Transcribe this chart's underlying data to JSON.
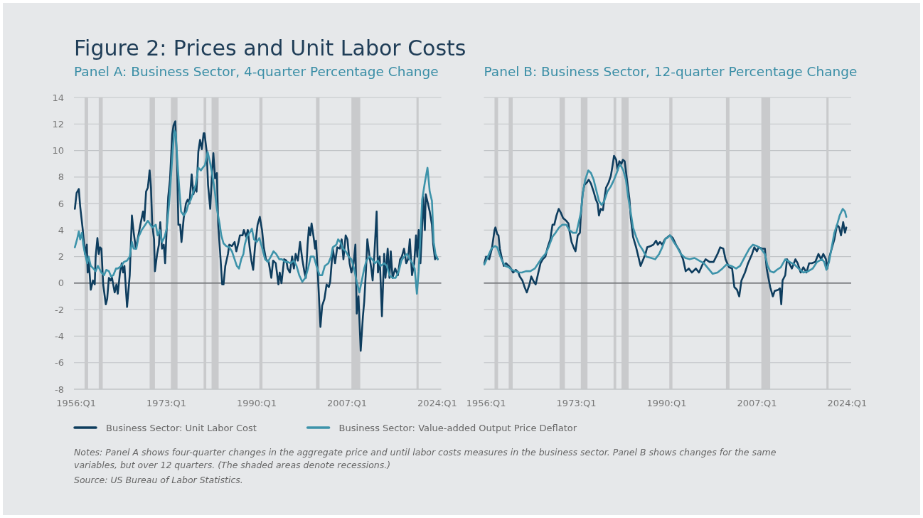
{
  "chart_data": [
    {
      "type": "line",
      "title": "Figure 2: Prices and Unit Labor Costs",
      "subtitle": "Panel A: Business Sector, 4-quarter Percentage Change",
      "xlim": [
        "1955-08",
        "2024-10"
      ],
      "xticks": [
        {
          "value": "1956-01",
          "label": "1956:Q1"
        },
        {
          "value": "1973-01",
          "label": "1973:Q1"
        },
        {
          "value": "1990-01",
          "label": "1990:Q1"
        },
        {
          "value": "2007-01",
          "label": "2007:Q1"
        },
        {
          "value": "2024-01",
          "label": "2024:Q1"
        }
      ],
      "ylim": [
        -8,
        14
      ],
      "yticks": [
        -8,
        -6,
        -4,
        -2,
        0,
        2,
        4,
        6,
        8,
        10,
        12,
        14
      ],
      "grid": "y",
      "legend": "bottom",
      "line_style": "solid",
      "bands": [
        {
          "axis": "x",
          "from": "1957-08",
          "to": "1958-04",
          "color": "#c9cacc"
        },
        {
          "axis": "x",
          "from": "1960-04",
          "to": "1961-01",
          "color": "#c9cacc"
        },
        {
          "axis": "x",
          "from": "1969-11",
          "to": "1970-11",
          "color": "#c9cacc"
        },
        {
          "axis": "x",
          "from": "1973-11",
          "to": "1975-02",
          "color": "#c9cacc"
        },
        {
          "axis": "x",
          "from": "1980-01",
          "to": "1980-07",
          "color": "#c9cacc"
        },
        {
          "axis": "x",
          "from": "1981-07",
          "to": "1982-11",
          "color": "#c9cacc"
        },
        {
          "axis": "x",
          "from": "1990-07",
          "to": "1991-02",
          "color": "#c9cacc"
        },
        {
          "axis": "x",
          "from": "2001-03",
          "to": "2001-11",
          "color": "#c9cacc"
        },
        {
          "axis": "x",
          "from": "2007-11",
          "to": "2009-07",
          "color": "#c9cacc"
        },
        {
          "axis": "x",
          "from": "2020-02",
          "to": "2020-07",
          "color": "#c9cacc"
        }
      ],
      "ref_lines": [
        {
          "axis": "y",
          "value": 0,
          "color": "#5a5d60"
        }
      ],
      "annotations": [
        "Notes: Panel A shows four-quarter changes in the aggregate price and until labor costs measures in the business sector. Panel B shows changes for the same variables, but over 12 quarters. (The shaded areas denote recessions.)",
        "Source: US Bureau of Labor Statistics."
      ],
      "series": [
        {
          "name": "Business Sector: Unit Labor Cost",
          "color": "#0e3d5e",
          "x": [
            "1955-10",
            "1956-02",
            "1956-07",
            "1956-10",
            "1957-04",
            "1957-09",
            "1958-01",
            "1958-03",
            "1958-05",
            "1958-10",
            "1959-03",
            "1959-07",
            "1959-09",
            "1960-01",
            "1960-04",
            "1960-07",
            "1960-10",
            "1961-02",
            "1961-08",
            "1961-11",
            "1962-03",
            "1962-07",
            "1962-10",
            "1963-04",
            "1963-08",
            "1963-11",
            "1964-04",
            "1964-08",
            "1964-11",
            "1965-02",
            "1965-08",
            "1966-02",
            "1966-07",
            "1966-11",
            "1967-04",
            "1967-09",
            "1968-02",
            "1968-08",
            "1968-11",
            "1969-03",
            "1969-07",
            "1969-11",
            "1970-02",
            "1970-05",
            "1970-09",
            "1970-11",
            "1971-04",
            "1971-08",
            "1971-11",
            "1972-03",
            "1972-07",
            "1972-10",
            "1973-02",
            "1973-05",
            "1973-09",
            "1974-02",
            "1974-05",
            "1974-09",
            "1975-01",
            "1975-04",
            "1975-08",
            "1975-11",
            "1976-04",
            "1976-09",
            "1977-01",
            "1977-05",
            "1977-10",
            "1978-02",
            "1978-05",
            "1978-09",
            "1979-01",
            "1979-05",
            "1979-09",
            "1980-01",
            "1980-03",
            "1980-08",
            "1980-11",
            "1981-04",
            "1981-08",
            "1981-11",
            "1982-03",
            "1982-07",
            "1982-10",
            "1983-03",
            "1983-07",
            "1983-10",
            "1984-02",
            "1984-08",
            "1984-11",
            "1985-05",
            "1985-11",
            "1986-03",
            "1986-08",
            "1986-11",
            "1987-05",
            "1987-08",
            "1988-01",
            "1988-05",
            "1988-09",
            "1989-01",
            "1989-05",
            "1989-09",
            "1990-03",
            "1990-08",
            "1991-01",
            "1991-05",
            "1991-10",
            "1992-04",
            "1992-10",
            "1993-02",
            "1993-08",
            "1994-02",
            "1994-05",
            "1994-09",
            "1995-03",
            "1995-08",
            "1995-11",
            "1996-04",
            "1996-09",
            "1997-01",
            "1997-05",
            "1997-10",
            "1998-03",
            "1998-08",
            "1999-01",
            "1999-04",
            "1999-08",
            "1999-11",
            "2000-02",
            "2000-05",
            "2000-09",
            "2001-01",
            "2001-03",
            "2001-07",
            "2002-01",
            "2002-05",
            "2002-10",
            "2003-03",
            "2003-08",
            "2003-11",
            "2004-05",
            "2004-10",
            "2005-03",
            "2005-09",
            "2006-01",
            "2006-05",
            "2006-10",
            "2007-02",
            "2007-07",
            "2007-11",
            "2008-04",
            "2008-08",
            "2008-11",
            "2009-03",
            "2009-08",
            "2010-01",
            "2010-04",
            "2010-08",
            "2010-11",
            "2011-04",
            "2011-08",
            "2011-11",
            "2012-03",
            "2012-08",
            "2012-11",
            "2013-03",
            "2013-08",
            "2014-01",
            "2014-04",
            "2014-09",
            "2015-01",
            "2015-04",
            "2015-08",
            "2016-02",
            "2016-08",
            "2017-01",
            "2017-05",
            "2017-10",
            "2018-03",
            "2018-07",
            "2018-11",
            "2019-04",
            "2019-09",
            "2020-01",
            "2020-04",
            "2020-07",
            "2020-11",
            "2021-02",
            "2021-05",
            "2021-09",
            "2021-11",
            "2022-04",
            "2022-08",
            "2023-01",
            "2023-04",
            "2023-08",
            "2023-11",
            "2024-02"
          ],
          "values": [
            5.6,
            6.8,
            7.1,
            5.8,
            4.0,
            2.2,
            2.9,
            0.8,
            1.9,
            -0.5,
            0.2,
            -0.1,
            2.0,
            3.4,
            2.2,
            2.7,
            2.6,
            -0.1,
            -1.6,
            -1.2,
            0.4,
            0.2,
            0.4,
            -0.7,
            -0.1,
            -0.8,
            0.8,
            1.5,
            0.8,
            1.3,
            -1.8,
            0.6,
            5.1,
            3.8,
            2.6,
            3.5,
            4.4,
            5.4,
            4.7,
            6.9,
            7.2,
            8.5,
            7.2,
            4.4,
            3.3,
            0.9,
            2.2,
            2.9,
            4.6,
            2.6,
            2.9,
            1.5,
            4.4,
            6.5,
            7.8,
            11.2,
            11.9,
            12.2,
            9.0,
            4.4,
            4.4,
            3.1,
            4.9,
            6.0,
            6.3,
            6.0,
            8.2,
            6.7,
            7.2,
            6.9,
            9.9,
            10.8,
            10.1,
            11.3,
            11.3,
            9.9,
            7.4,
            5.6,
            8.3,
            9.8,
            7.9,
            8.3,
            4.4,
            2.0,
            -0.1,
            -0.1,
            1.3,
            2.2,
            2.9,
            2.8,
            3.1,
            2.4,
            3.1,
            3.6,
            3.6,
            4.0,
            3.5,
            4.0,
            2.7,
            1.7,
            1.0,
            2.7,
            4.4,
            5.0,
            4.0,
            2.7,
            1.8,
            1.6,
            0.4,
            1.7,
            1.5,
            -0.1,
            0.8,
            0.0,
            1.8,
            1.7,
            1.1,
            0.8,
            2.0,
            1.1,
            2.2,
            1.7,
            3.1,
            1.8,
            0.8,
            0.4,
            2.9,
            4.2,
            3.6,
            4.5,
            3.6,
            2.6,
            3.2,
            0.8,
            -3.3,
            -1.7,
            -1.2,
            -0.1,
            -0.3,
            0.1,
            2.6,
            1.5,
            2.7,
            2.6,
            3.3,
            1.8,
            3.6,
            3.3,
            1.5,
            0.8,
            1.5,
            2.9,
            -2.3,
            -1.0,
            -5.1,
            -2.5,
            -1.4,
            1.0,
            3.3,
            2.0,
            1.1,
            0.2,
            2.2,
            5.4,
            0.8,
            2.0,
            -2.5,
            2.2,
            0.4,
            2.6,
            0.4,
            2.4,
            0.4,
            1.1,
            0.6,
            1.8,
            2.0,
            2.6,
            1.5,
            1.8,
            3.3,
            0.6,
            1.5,
            3.6,
            2.0,
            4.0,
            1.5,
            3.6,
            6.5,
            4.0,
            6.7,
            6.0,
            5.4,
            4.4,
            2.9,
            1.8,
            2.0,
            1.8
          ]
        },
        {
          "name": "Business Sector: Value-added Output Price Deflator",
          "color": "#3d93aa",
          "x": [
            "1955-10",
            "1956-03",
            "1956-07",
            "1956-10",
            "1957-02",
            "1957-05",
            "1957-09",
            "1958-02",
            "1958-05",
            "1958-10",
            "1959-04",
            "1959-09",
            "1960-02",
            "1960-10",
            "1961-04",
            "1961-09",
            "1962-03",
            "1962-08",
            "1963-01",
            "1963-07",
            "1963-11",
            "1964-07",
            "1965-01",
            "1965-08",
            "1966-02",
            "1966-07",
            "1966-11",
            "1967-05",
            "1967-10",
            "1968-05",
            "1969-01",
            "1969-07",
            "1970-01",
            "1970-05",
            "1971-01",
            "1971-05",
            "1971-10",
            "1972-03",
            "1972-09",
            "1973-02",
            "1973-07",
            "1973-10",
            "1974-03",
            "1974-07",
            "1974-10",
            "1975-02",
            "1975-07",
            "1975-10",
            "1976-04",
            "1976-10",
            "1977-03",
            "1977-08",
            "1978-02",
            "1978-07",
            "1979-01",
            "1979-07",
            "1979-11",
            "1980-04",
            "1980-10",
            "1981-03",
            "1981-08",
            "1982-02",
            "1982-07",
            "1983-01",
            "1983-05",
            "1983-10",
            "1984-04",
            "1984-11",
            "1985-05",
            "1985-11",
            "1986-04",
            "1986-09",
            "1987-02",
            "1987-07",
            "1987-10",
            "1988-03",
            "1988-09",
            "1989-02",
            "1989-07",
            "1990-01",
            "1990-07",
            "1991-01",
            "1991-08",
            "1992-02",
            "1992-09",
            "1993-03",
            "1993-09",
            "1994-04",
            "1994-10",
            "1995-05",
            "1995-11",
            "1996-05",
            "1997-01",
            "1997-07",
            "1998-01",
            "1998-08",
            "1999-03",
            "1999-09",
            "2000-03",
            "2000-10",
            "2001-04",
            "2001-11",
            "2002-05",
            "2002-11",
            "2003-07",
            "2004-01",
            "2004-05",
            "2005-01",
            "2005-05",
            "2005-10",
            "2006-04",
            "2006-10",
            "2007-05",
            "2007-11",
            "2008-05",
            "2008-11",
            "2009-05",
            "2009-10",
            "2010-04",
            "2010-09",
            "2011-04",
            "2011-10",
            "2012-04",
            "2012-11",
            "2013-05",
            "2014-01",
            "2014-07",
            "2015-01",
            "2015-08",
            "2016-03",
            "2016-10",
            "2017-04",
            "2017-10",
            "2018-05",
            "2018-11",
            "2019-05",
            "2019-10",
            "2020-03",
            "2020-07",
            "2020-11",
            "2021-03",
            "2021-09",
            "2022-03",
            "2022-08",
            "2023-01",
            "2023-05",
            "2023-09",
            "2024-02"
          ],
          "values": [
            2.7,
            3.3,
            3.9,
            3.3,
            3.8,
            2.9,
            2.2,
            1.5,
            2.0,
            1.3,
            1.1,
            0.9,
            1.3,
            0.8,
            0.6,
            1.0,
            0.9,
            0.5,
            0.6,
            1.1,
            1.1,
            1.3,
            1.6,
            1.7,
            2.0,
            3.1,
            2.6,
            2.6,
            3.5,
            4.0,
            4.4,
            4.7,
            4.4,
            4.2,
            4.4,
            3.6,
            4.0,
            3.1,
            3.5,
            4.2,
            6.0,
            7.4,
            9.9,
            11.5,
            11.3,
            9.0,
            6.7,
            5.4,
            5.1,
            5.4,
            6.0,
            6.3,
            6.9,
            7.4,
            8.7,
            8.5,
            8.7,
            8.9,
            9.9,
            9.2,
            8.3,
            7.0,
            5.6,
            4.5,
            3.6,
            3.0,
            2.8,
            2.7,
            2.4,
            1.8,
            1.3,
            1.1,
            1.8,
            2.2,
            2.9,
            3.5,
            3.8,
            4.1,
            3.3,
            3.1,
            3.4,
            2.7,
            1.8,
            1.6,
            2.0,
            2.4,
            2.2,
            1.8,
            1.8,
            1.6,
            1.6,
            1.5,
            1.7,
            1.3,
            0.6,
            0.1,
            0.4,
            1.1,
            2.0,
            2.0,
            1.3,
            0.6,
            0.6,
            1.3,
            1.5,
            2.0,
            2.7,
            2.9,
            3.3,
            3.1,
            2.6,
            2.4,
            2.0,
            1.8,
            1.1,
            0.1,
            -0.7,
            0.1,
            1.1,
            1.7,
            2.0,
            1.8,
            1.5,
            1.7,
            1.3,
            1.5,
            1.3,
            0.6,
            0.4,
            0.4,
            0.9,
            1.7,
            2.0,
            2.2,
            1.8,
            1.5,
            1.1,
            -0.8,
            0.9,
            3.6,
            6.3,
            7.6,
            8.7,
            6.9,
            6.2,
            3.1,
            2.2,
            1.8
          ]
        }
      ]
    },
    {
      "type": "line",
      "subtitle": "Panel B: Business Sector, 12-quarter Percentage Change",
      "xlim": [
        "1955-08",
        "2024-10"
      ],
      "xticks": [
        {
          "value": "1956-01",
          "label": "1956:Q1"
        },
        {
          "value": "1973-01",
          "label": "1973:Q1"
        },
        {
          "value": "1990-01",
          "label": "1990:Q1"
        },
        {
          "value": "2007-01",
          "label": "2007:Q1"
        },
        {
          "value": "2024-01",
          "label": "2024:Q1"
        }
      ],
      "ylim": [
        -8,
        14
      ],
      "yticks": [
        -8,
        -6,
        -4,
        -2,
        0,
        2,
        4,
        6,
        8,
        10,
        12,
        14
      ],
      "grid": "y",
      "tick_labels": "x",
      "line_style": "solid",
      "bands": [
        {
          "axis": "x",
          "from": "1957-08",
          "to": "1958-04",
          "color": "#c9cacc"
        },
        {
          "axis": "x",
          "from": "1960-04",
          "to": "1961-01",
          "color": "#c9cacc"
        },
        {
          "axis": "x",
          "from": "1969-11",
          "to": "1970-11",
          "color": "#c9cacc"
        },
        {
          "axis": "x",
          "from": "1973-11",
          "to": "1975-02",
          "color": "#c9cacc"
        },
        {
          "axis": "x",
          "from": "1980-01",
          "to": "1980-07",
          "color": "#c9cacc"
        },
        {
          "axis": "x",
          "from": "1981-07",
          "to": "1982-11",
          "color": "#c9cacc"
        },
        {
          "axis": "x",
          "from": "1990-07",
          "to": "1991-02",
          "color": "#c9cacc"
        },
        {
          "axis": "x",
          "from": "2001-03",
          "to": "2001-11",
          "color": "#c9cacc"
        },
        {
          "axis": "x",
          "from": "2007-11",
          "to": "2009-07",
          "color": "#c9cacc"
        },
        {
          "axis": "x",
          "from": "2020-02",
          "to": "2020-07",
          "color": "#c9cacc"
        }
      ],
      "ref_lines": [
        {
          "axis": "y",
          "value": 0,
          "color": "#5a5d60"
        }
      ],
      "series": [
        {
          "color": "#0e3d5e",
          "x": [
            "1955-09",
            "1956-01",
            "1956-08",
            "1957-02",
            "1957-08",
            "1957-10",
            "1958-02",
            "1958-05",
            "1958-08",
            "1959-01",
            "1959-05",
            "1959-10",
            "1960-04",
            "1960-09",
            "1961-02",
            "1961-08",
            "1962-02",
            "1962-05",
            "1962-11",
            "1963-04",
            "1963-09",
            "1964-03",
            "1964-07",
            "1965-01",
            "1965-05",
            "1965-11",
            "1966-04",
            "1966-09",
            "1967-03",
            "1967-08",
            "1968-02",
            "1968-07",
            "1968-11",
            "1969-04",
            "1969-09",
            "1970-02",
            "1970-07",
            "1971-02",
            "1971-07",
            "1971-09",
            "1972-02",
            "1972-08",
            "1972-11",
            "1973-04",
            "1973-09",
            "1973-11",
            "1974-03",
            "1974-07",
            "1975-01",
            "1975-05",
            "1975-10",
            "1976-04",
            "1976-09",
            "1977-01",
            "1977-04",
            "1977-08",
            "1978-01",
            "1978-04",
            "1978-08",
            "1979-02",
            "1979-07",
            "1979-10",
            "1980-02",
            "1980-07",
            "1980-10",
            "1981-02",
            "1981-07",
            "1981-10",
            "1982-02",
            "1982-07",
            "1983-01",
            "1983-04",
            "1983-09",
            "1984-04",
            "1984-09",
            "1985-02",
            "1985-07",
            "1986-01",
            "1986-05",
            "1987-01",
            "1987-07",
            "1988-01",
            "1988-05",
            "1988-10",
            "1989-03",
            "1989-09",
            "1990-08",
            "1991-03",
            "1991-10",
            "1992-07",
            "1993-02",
            "1993-08",
            "1994-03",
            "1994-10",
            "1995-07",
            "1996-02",
            "1996-10",
            "1997-05",
            "1998-02",
            "1998-11",
            "1999-08",
            "2000-02",
            "2000-09",
            "2001-02",
            "2001-10",
            "2002-05",
            "2002-10",
            "2003-04",
            "2003-09",
            "2004-02",
            "2004-10",
            "2005-05",
            "2006-02",
            "2006-07",
            "2007-01",
            "2007-05",
            "2008-01",
            "2008-07",
            "2008-11",
            "2009-07",
            "2010-01",
            "2010-05",
            "2011-01",
            "2011-05",
            "2011-08",
            "2011-11",
            "2012-05",
            "2012-09",
            "2013-02",
            "2013-08",
            "2014-04",
            "2014-09",
            "2015-04",
            "2015-10",
            "2016-05",
            "2016-11",
            "2017-05",
            "2018-01",
            "2018-08",
            "2019-02",
            "2019-07",
            "2020-01",
            "2020-04",
            "2020-09",
            "2021-02",
            "2021-08",
            "2022-02",
            "2022-07",
            "2022-11",
            "2023-04",
            "2023-08",
            "2023-11"
          ],
          "values": [
            1.5,
            2.0,
            1.8,
            2.6,
            4.0,
            4.2,
            3.7,
            3.6,
            2.6,
            1.8,
            1.3,
            1.5,
            1.3,
            1.1,
            0.8,
            1.0,
            0.8,
            0.5,
            0.2,
            -0.3,
            -0.7,
            -0.1,
            0.5,
            0.1,
            -0.1,
            0.8,
            1.5,
            1.8,
            2.0,
            2.7,
            3.3,
            4.4,
            4.4,
            5.1,
            5.6,
            5.3,
            4.9,
            4.7,
            4.5,
            4.0,
            3.1,
            2.6,
            2.4,
            3.6,
            3.8,
            5.1,
            6.7,
            7.4,
            7.6,
            7.8,
            7.5,
            6.9,
            6.3,
            6.0,
            5.1,
            5.6,
            5.5,
            6.3,
            7.2,
            7.6,
            8.1,
            8.7,
            9.6,
            9.3,
            8.5,
            9.2,
            9.0,
            9.3,
            9.2,
            7.9,
            6.3,
            4.9,
            3.5,
            2.7,
            2.0,
            1.3,
            1.7,
            2.2,
            2.7,
            2.8,
            2.9,
            3.2,
            2.9,
            3.1,
            2.9,
            3.3,
            3.6,
            3.4,
            2.9,
            2.4,
            1.8,
            0.9,
            1.1,
            0.8,
            1.1,
            0.8,
            1.4,
            1.8,
            1.6,
            1.6,
            2.2,
            2.7,
            2.6,
            1.8,
            1.2,
            1.1,
            -0.3,
            -0.5,
            -1.0,
            0.2,
            0.8,
            1.5,
            2.2,
            2.7,
            2.4,
            2.7,
            2.6,
            2.6,
            1.1,
            -0.3,
            -1.0,
            -0.6,
            -0.5,
            -0.4,
            -1.6,
            0.2,
            0.6,
            1.8,
            1.5,
            1.1,
            1.8,
            1.5,
            0.8,
            1.2,
            0.8,
            1.5,
            1.5,
            1.6,
            2.2,
            1.8,
            2.2,
            1.8,
            1.1,
            2.0,
            2.6,
            3.3,
            4.4,
            4.2,
            3.6,
            4.6,
            3.8,
            4.2
          ]
        },
        {
          "color": "#3d93aa",
          "x": [
            "1955-09",
            "1956-05",
            "1957-01",
            "1957-09",
            "1958-02",
            "1958-07",
            "1959-01",
            "1959-08",
            "1960-04",
            "1960-11",
            "1961-08",
            "1962-03",
            "1962-10",
            "1963-07",
            "1964-05",
            "1965-03",
            "1965-11",
            "1966-07",
            "1967-03",
            "1967-10",
            "1968-07",
            "1969-02",
            "1969-10",
            "1970-05",
            "1971-02",
            "1971-09",
            "1972-05",
            "1973-01",
            "1973-05",
            "1973-11",
            "1974-04",
            "1974-09",
            "1975-04",
            "1975-10",
            "1976-04",
            "1976-10",
            "1977-04",
            "1977-10",
            "1978-04",
            "1978-11",
            "1979-07",
            "1980-02",
            "1980-08",
            "1981-01",
            "1981-05",
            "1981-11",
            "1982-05",
            "1982-10",
            "1983-04",
            "1983-09",
            "1984-04",
            "1984-11",
            "1985-07",
            "1986-03",
            "1987-02",
            "1987-11",
            "1988-08",
            "1989-03",
            "1989-11",
            "1990-02",
            "1990-09",
            "1991-05",
            "1992-01",
            "1992-09",
            "1993-07",
            "1994-05",
            "1995-04",
            "1996-02",
            "1997-01",
            "1997-11",
            "1998-09",
            "1999-08",
            "2000-07",
            "2001-04",
            "2002-03",
            "2003-02",
            "2003-11",
            "2004-10",
            "2005-08",
            "2006-04",
            "2007-01",
            "2007-10",
            "2008-07",
            "2009-01",
            "2009-07",
            "2010-03",
            "2010-10",
            "2011-07",
            "2012-05",
            "2013-03",
            "2014-02",
            "2014-11",
            "2015-10",
            "2016-09",
            "2017-07",
            "2018-05",
            "2019-04",
            "2019-09",
            "2020-02",
            "2020-08",
            "2021-02",
            "2021-08",
            "2022-03",
            "2022-08",
            "2023-03",
            "2023-08",
            "2023-11"
          ],
          "values": [
            1.4,
            2.0,
            2.6,
            2.8,
            2.7,
            2.2,
            1.7,
            1.3,
            1.2,
            1.0,
            0.9,
            0.8,
            0.8,
            0.9,
            0.9,
            1.1,
            1.5,
            1.9,
            2.2,
            2.7,
            3.5,
            3.8,
            4.2,
            4.4,
            4.4,
            4.0,
            3.8,
            3.8,
            4.4,
            5.3,
            6.9,
            7.8,
            8.5,
            8.3,
            7.8,
            7.0,
            6.2,
            5.9,
            6.2,
            6.9,
            7.3,
            7.8,
            8.3,
            8.8,
            8.9,
            8.5,
            7.8,
            6.5,
            5.3,
            4.2,
            3.5,
            2.9,
            2.5,
            2.0,
            1.9,
            1.8,
            2.2,
            2.7,
            3.4,
            3.4,
            3.6,
            3.1,
            2.7,
            2.2,
            1.9,
            1.8,
            1.9,
            1.7,
            1.5,
            1.1,
            0.7,
            0.8,
            1.1,
            1.4,
            1.3,
            1.1,
            1.3,
            2.0,
            2.6,
            2.9,
            2.8,
            2.6,
            2.2,
            1.3,
            0.9,
            0.8,
            1.0,
            1.2,
            1.8,
            1.6,
            1.4,
            1.1,
            0.8,
            0.9,
            1.1,
            1.6,
            1.8,
            1.6,
            1.0,
            1.6,
            2.7,
            3.8,
            4.5,
            5.1,
            5.6,
            5.4,
            5.0
          ]
        }
      ]
    }
  ]
}
